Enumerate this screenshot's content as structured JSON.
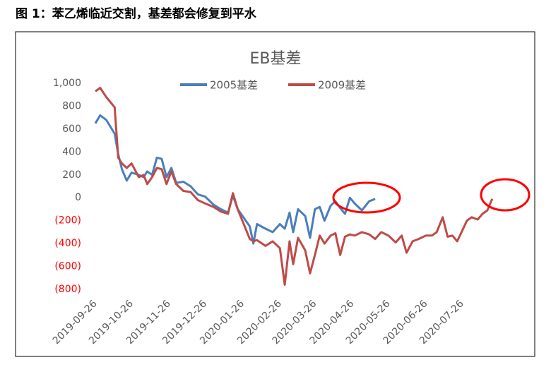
{
  "figure_title": "图 1：苯乙烯临近交割，基差都会修复到平水",
  "chart_data": {
    "type": "line",
    "title": "EB基差",
    "x": [
      "2019-09-26",
      "2019-09-30",
      "2019-10-05",
      "2019-10-12",
      "2019-10-15",
      "2019-10-18",
      "2019-10-22",
      "2019-10-26",
      "2019-11-01",
      "2019-11-05",
      "2019-11-08",
      "2019-11-12",
      "2019-11-16",
      "2019-11-20",
      "2019-11-24",
      "2019-11-28",
      "2019-12-02",
      "2019-12-08",
      "2019-12-14",
      "2019-12-20",
      "2019-12-26",
      "2020-01-02",
      "2020-01-08",
      "2020-01-14",
      "2020-01-18",
      "2020-01-22",
      "2020-02-01",
      "2020-02-04",
      "2020-02-07",
      "2020-02-14",
      "2020-02-20",
      "2020-02-26",
      "2020-03-01",
      "2020-03-05",
      "2020-03-08",
      "2020-03-12",
      "2020-03-18",
      "2020-03-22",
      "2020-03-26",
      "2020-03-30",
      "2020-04-03",
      "2020-04-08",
      "2020-04-12",
      "2020-04-16",
      "2020-04-20",
      "2020-04-24",
      "2020-04-28",
      "2020-05-04",
      "2020-05-10",
      "2020-05-15",
      "2020-05-20",
      "2020-05-26",
      "2020-06-01",
      "2020-06-06",
      "2020-06-10",
      "2020-06-15",
      "2020-06-20",
      "2020-06-26",
      "2020-07-01",
      "2020-07-05",
      "2020-07-10",
      "2020-07-14",
      "2020-07-18",
      "2020-07-22",
      "2020-07-26",
      "2020-07-30",
      "2020-08-03",
      "2020-08-08",
      "2020-08-12",
      "2020-08-16",
      "2020-08-20"
    ],
    "series": [
      {
        "name": "2005基差",
        "color": "#4a7ebb",
        "values": [
          650,
          720,
          680,
          560,
          380,
          250,
          150,
          220,
          200,
          180,
          230,
          200,
          350,
          340,
          180,
          260,
          130,
          140,
          100,
          30,
          10,
          -60,
          -100,
          -130,
          20,
          -100,
          -250,
          -400,
          -230,
          -270,
          -300,
          -230,
          -270,
          -130,
          -300,
          -100,
          -160,
          -350,
          -100,
          -80,
          -200,
          -70,
          -30,
          -90,
          -140,
          0,
          -50,
          -110,
          -30,
          -10,
          null,
          null,
          null,
          null,
          null,
          null,
          null,
          null,
          null,
          null,
          null,
          null,
          null,
          null,
          null,
          null,
          null,
          null,
          null,
          null,
          null
        ]
      },
      {
        "name": "2009基差",
        "color": "#be4b48",
        "values": [
          930,
          960,
          880,
          790,
          350,
          300,
          260,
          300,
          180,
          200,
          120,
          180,
          260,
          250,
          120,
          230,
          120,
          60,
          50,
          -20,
          -50,
          -80,
          -120,
          -140,
          40,
          -100,
          -360,
          -380,
          -370,
          -420,
          -380,
          -440,
          -760,
          -380,
          -580,
          -350,
          -460,
          -660,
          -500,
          -330,
          -400,
          -330,
          -310,
          -500,
          -340,
          -320,
          -330,
          -300,
          -320,
          -360,
          -300,
          -330,
          -390,
          -330,
          -480,
          -380,
          -360,
          -330,
          -330,
          -300,
          -170,
          -340,
          -330,
          -380,
          -290,
          -200,
          -170,
          -190,
          -140,
          -110,
          -10
        ]
      }
    ],
    "xlim": [
      "2019-09-26",
      "2020-08-26"
    ],
    "xticks": [
      "2019-09-26",
      "2019-10-26",
      "2019-11-26",
      "2019-12-26",
      "2020-01-26",
      "2020-02-26",
      "2020-03-26",
      "2020-04-26",
      "2020-05-26",
      "2020-06-26",
      "2020-07-26"
    ],
    "ylim": [
      -800,
      1000
    ],
    "yticks": [
      {
        "value": 1000,
        "label": "1,000"
      },
      800,
      600,
      400,
      200,
      0,
      {
        "value": -200,
        "label": "(200)"
      },
      {
        "value": -400,
        "label": "(400)"
      },
      {
        "value": -600,
        "label": "(600)"
      },
      {
        "value": -800,
        "label": "(800)"
      }
    ],
    "negative_tick_color": "#ff0000",
    "grid": false,
    "legend": "top"
  }
}
